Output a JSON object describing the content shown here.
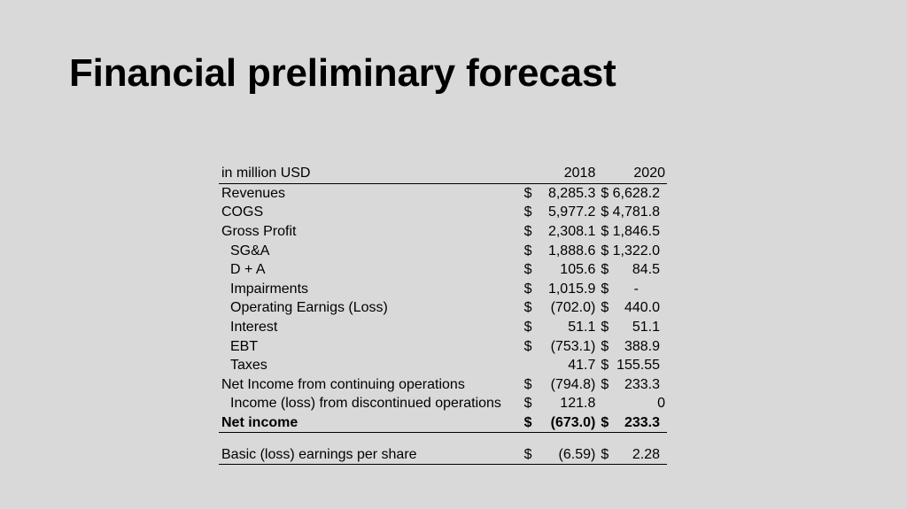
{
  "slide": {
    "title": "Financial preliminary forecast"
  },
  "table": {
    "unit_label": "in million USD",
    "years": [
      "2018",
      "2020"
    ],
    "currency": "$",
    "rows": {
      "revenues": {
        "label": "Revenues",
        "v2018": "8,285.3",
        "v2020": "6,628.2"
      },
      "cogs": {
        "label": "COGS",
        "v2018": "5,977.2",
        "v2020": "4,781.8"
      },
      "gross_profit": {
        "label": "Gross Profit",
        "v2018": "2,308.1",
        "v2020": "1,846.5"
      },
      "sga": {
        "label": "SG&A",
        "v2018": "1,888.6",
        "v2020": "1,322.0"
      },
      "da": {
        "label": "D + A",
        "v2018": "105.6",
        "v2020": "84.5"
      },
      "impairments": {
        "label": "Impairments",
        "v2018": "1,015.9",
        "v2020": "-"
      },
      "operating_earnings": {
        "label": "Operating Earnigs (Loss)",
        "v2018": "(702.0)",
        "v2020": "440.0"
      },
      "interest": {
        "label": "Interest",
        "v2018": "51.1",
        "v2020": "51.1"
      },
      "ebt": {
        "label": "EBT",
        "v2018": "(753.1)",
        "v2020": "388.9"
      },
      "taxes": {
        "label": "Taxes",
        "v2018": "41.7",
        "v2020": "155.55"
      },
      "net_income_continuing": {
        "label": "Net Income from continuing operations",
        "v2018": "(794.8)",
        "v2020": "233.3"
      },
      "income_discontinued": {
        "label": "Income (loss) from discontinued operations",
        "v2018": "121.8",
        "v2020": "0"
      },
      "net_income": {
        "label": "Net income",
        "v2018": "(673.0)",
        "v2020": "233.3"
      },
      "eps": {
        "label": "Basic (loss) earnings per share",
        "v2018": "(6.59)",
        "v2020": "2.28"
      }
    }
  }
}
